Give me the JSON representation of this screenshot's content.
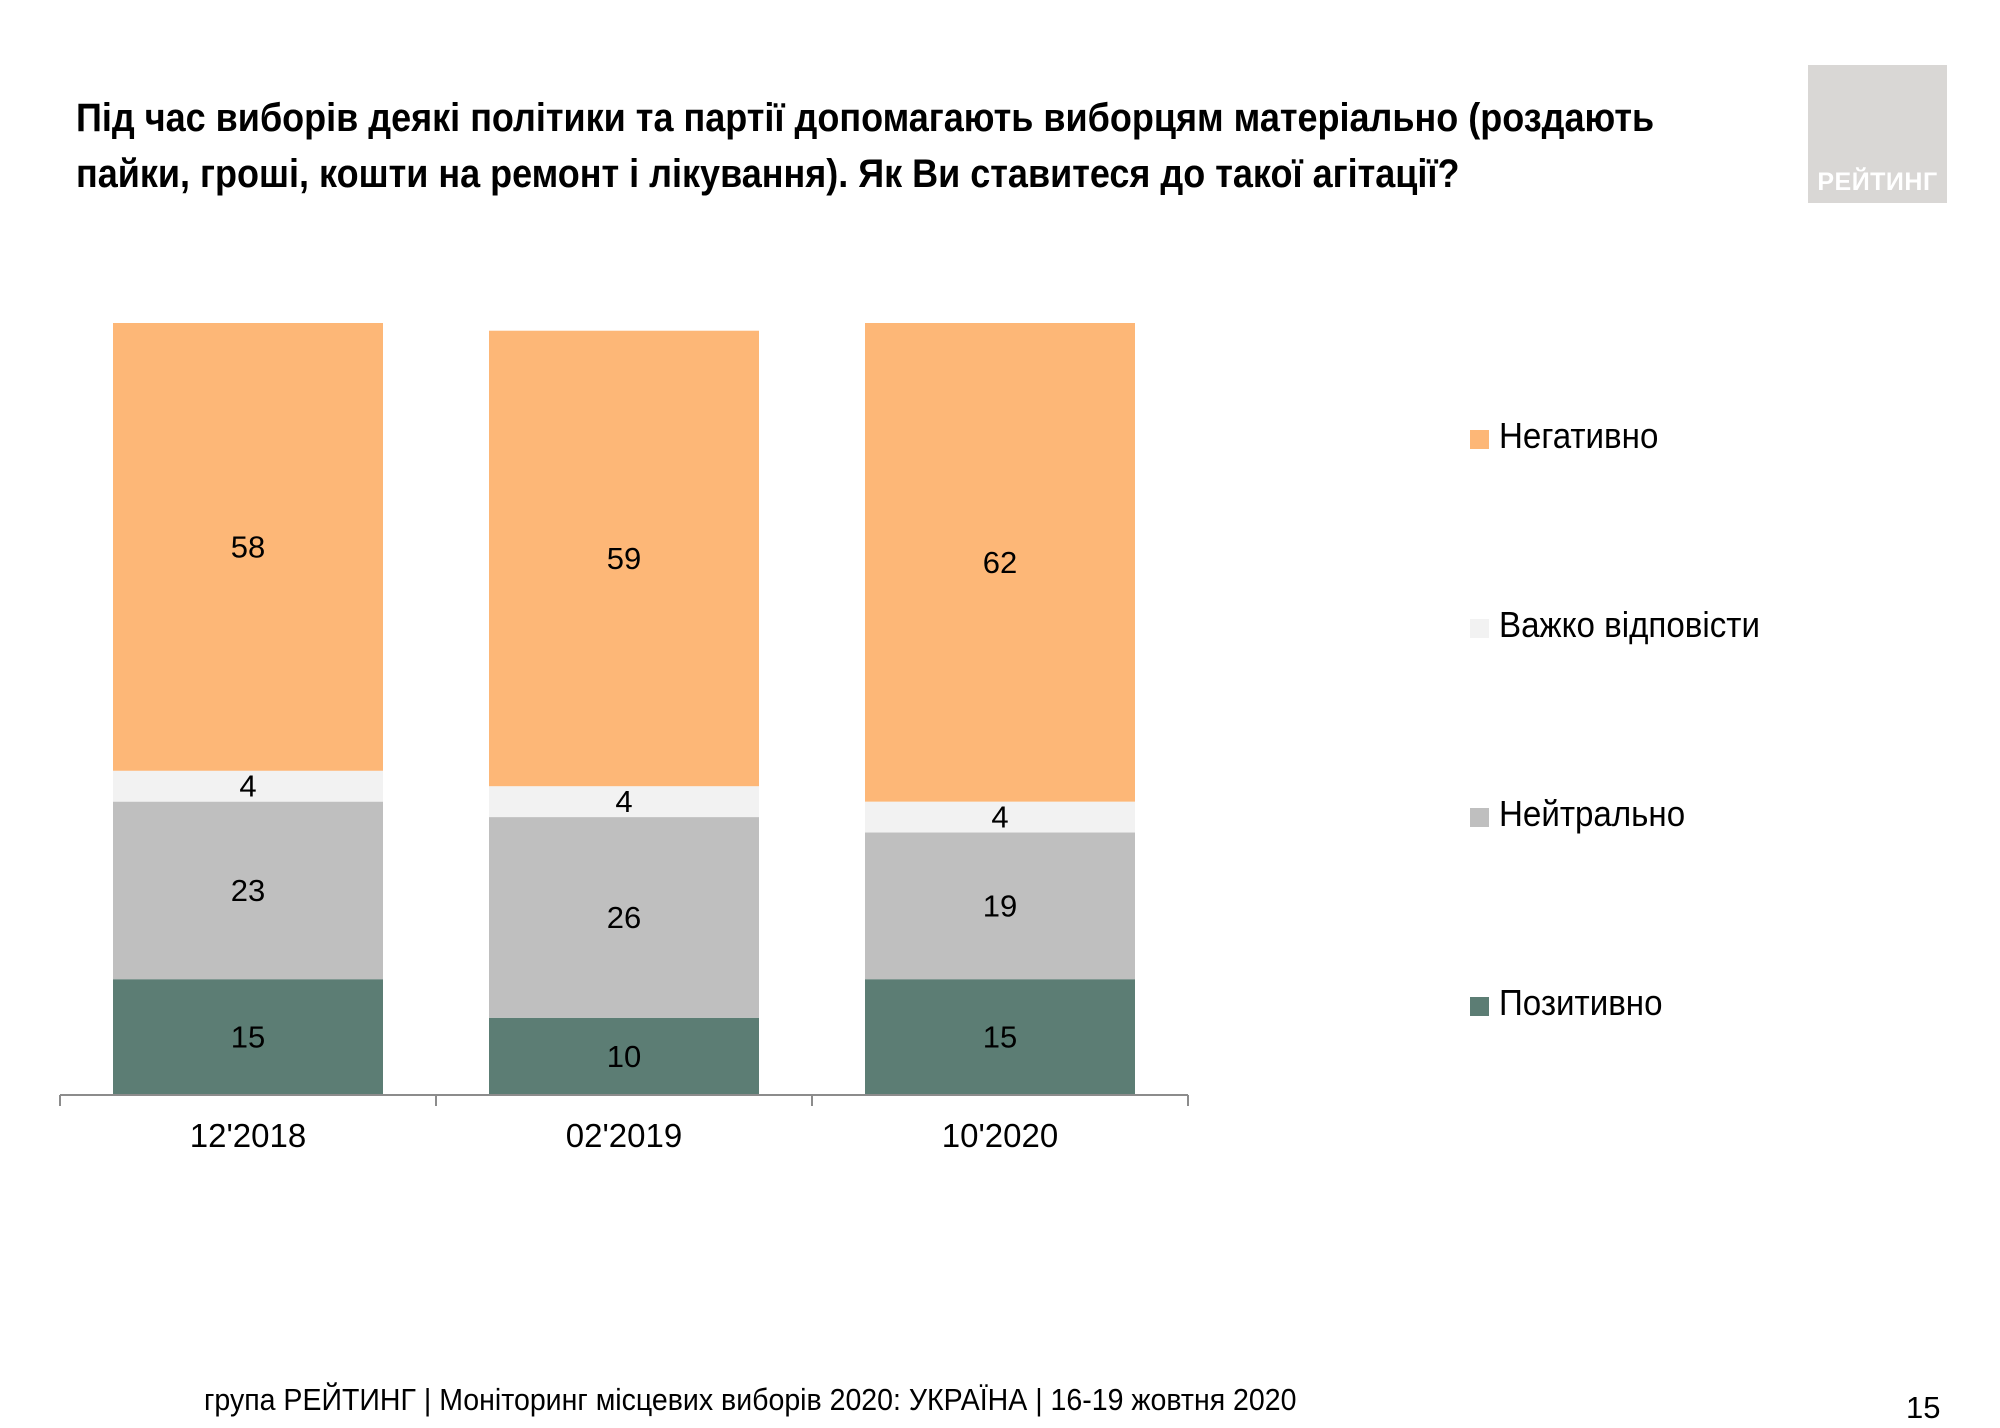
{
  "header": {
    "title_line1": "Під час виборів деякі політики та партії допомагають виборцям матеріально (роздають",
    "title_line2": "пайки, гроші, кошти на ремонт і лікування). Як Ви ставитеся до такої агітації?"
  },
  "logo": {
    "text": "РЕЙТИНГ"
  },
  "chart_data": {
    "type": "bar",
    "stacked": true,
    "categories": [
      "12'2018",
      "02'2019",
      "10'2020"
    ],
    "series": [
      {
        "name": "Позитивно",
        "color": "#5c7d74",
        "values": [
          15,
          10,
          15
        ]
      },
      {
        "name": "Нейтрально",
        "color": "#bfbfbf",
        "values": [
          23,
          26,
          19
        ]
      },
      {
        "name": "Важко відповісти",
        "color": "#f2f2f2",
        "values": [
          4,
          4,
          4
        ]
      },
      {
        "name": "Негативно",
        "color": "#fdb777",
        "values": [
          58,
          59,
          62
        ]
      }
    ],
    "legend_order": [
      "Негативно",
      "Важко відповісти",
      "Нейтрально",
      "Позитивно"
    ],
    "legend_position": "right",
    "ylim": [
      0,
      100
    ],
    "grid": false,
    "title": "",
    "xlabel": "",
    "ylabel": ""
  },
  "footer": {
    "text": "група РЕЙТИНГ | Моніторинг місцевих виборів 2020: УКРАЇНА | 16-19 жовтня 2020",
    "page_number": "15"
  }
}
